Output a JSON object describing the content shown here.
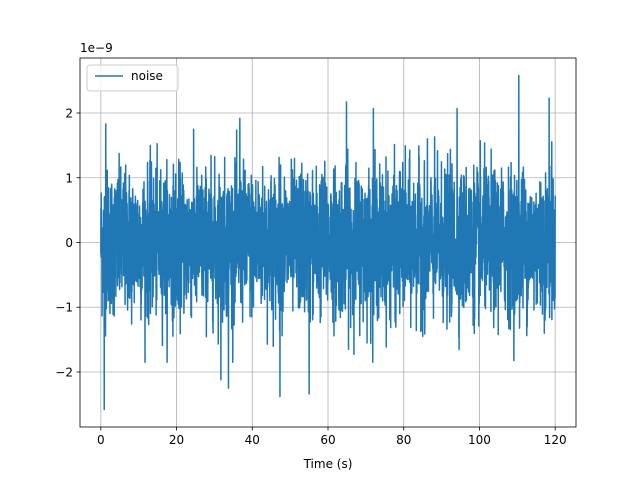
{
  "chart_data": {
    "type": "line",
    "title": "",
    "xlabel": "Time (s)",
    "ylabel": "",
    "offset_text": "1e−9",
    "xlim": [
      -5.5,
      125.5
    ],
    "ylim": [
      -2.85,
      2.85
    ],
    "xticks": [
      0,
      20,
      40,
      60,
      80,
      100,
      120
    ],
    "xtick_labels": [
      "0",
      "20",
      "40",
      "60",
      "80",
      "100",
      "120"
    ],
    "yticks": [
      -2,
      -1,
      0,
      1,
      2
    ],
    "ytick_labels": [
      "−2",
      "−1",
      "0",
      "1",
      "2"
    ],
    "grid": true,
    "legend_position": "upper-left",
    "series": [
      {
        "name": "noise",
        "color": "#1f77b4",
        "x_range": [
          0,
          120
        ],
        "y_scale": "1e-9",
        "approx_std": 0.55,
        "extremes": [
          {
            "x": 0.9,
            "y": -2.58
          },
          {
            "x": 47.3,
            "y": -2.38
          },
          {
            "x": 55.0,
            "y": -2.34
          },
          {
            "x": 33.7,
            "y": -2.25
          },
          {
            "x": 31.7,
            "y": -2.12
          },
          {
            "x": 110.4,
            "y": 2.58
          },
          {
            "x": 118.4,
            "y": 2.23
          },
          {
            "x": 64.9,
            "y": 2.17
          },
          {
            "x": 72.0,
            "y": 2.07
          },
          {
            "x": 94.1,
            "y": 2.07
          },
          {
            "x": 36.7,
            "y": 1.92
          },
          {
            "x": 1.3,
            "y": 1.83
          }
        ]
      }
    ]
  }
}
